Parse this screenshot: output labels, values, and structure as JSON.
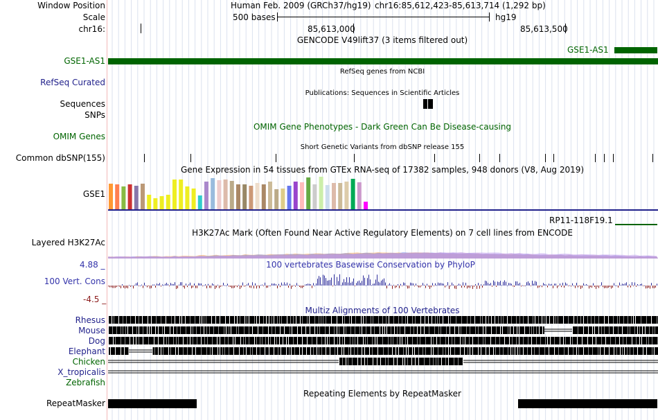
{
  "header": {
    "window_position_label": "Window Position",
    "scale_label": "Scale",
    "chrom_label": "chr16:",
    "assembly": "Human Feb. 2009 (GRCh37/hg19)",
    "position": "chr16:85,612,423-85,613,714 (1,292 bp)",
    "scale_text": "500 bases",
    "db": "hg19",
    "coord_ticks": [
      "85,613,000",
      "85,613,500"
    ]
  },
  "tracks": {
    "gencode": {
      "title": "GENCODE V49lift37 (3 items filtered out)",
      "label": "GSE1-AS1",
      "right_item": "GSE1-AS1",
      "color": "#006400"
    },
    "refseq": {
      "title": "RefSeq genes from NCBI",
      "label": "RefSeq Curated",
      "color": "#1f1f8a"
    },
    "publications": {
      "title": "Publications: Sequences in Scientific Articles",
      "label1": "Sequences",
      "label2": "SNPs"
    },
    "omim": {
      "title": "OMIM Gene Phenotypes - Dark Green Can Be Disease-causing",
      "label": "OMIM Genes",
      "color": "#006400"
    },
    "dbsnp": {
      "title": "Short Genetic Variants from dbSNP release 155",
      "label": "Common dbSNP(155)"
    },
    "gtex": {
      "title": "Gene Expression in 54 tissues from GTEx RNA-seq of 17382 samples, 948 donors (V8, Aug 2019)",
      "label": "GSE1",
      "right_item": "RP11-118F19.1"
    },
    "h3k27ac": {
      "title": "H3K27Ac Mark (Often Found Near Active Regulatory Elements) on 7 cell lines from ENCODE",
      "label": "Layered H3K27Ac"
    },
    "phylop": {
      "title": "100 vertebrates Basewise Conservation by PhyloP",
      "label": "100 Vert. Cons",
      "max": "4.88 _",
      "min": "-4.5 _",
      "color": "#3333aa"
    },
    "multiz": {
      "title": "Multiz Alignments of 100 Vertebrates",
      "color": "#1f1f8a",
      "species": [
        {
          "name": "Rhesus",
          "color": "#1f1f8a"
        },
        {
          "name": "Mouse",
          "color": "#1f1f8a"
        },
        {
          "name": "Dog",
          "color": "#1f1f8a"
        },
        {
          "name": "Elephant",
          "color": "#1f1f8a"
        },
        {
          "name": "Chicken",
          "color": "#006400"
        },
        {
          "name": "X_tropicalis",
          "color": "#1f1f8a"
        },
        {
          "name": "Zebrafish",
          "color": "#006400"
        }
      ]
    },
    "repeatmasker": {
      "title": "Repeating Elements by RepeatMasker",
      "label": "RepeatMasker"
    }
  },
  "gtex_colors": [
    "#ff9933",
    "#ff7f50",
    "#88bb44",
    "#cc3333",
    "#8877aa",
    "#bb9977",
    "#eeee22",
    "#eeee22",
    "#eeee22",
    "#eeee22",
    "#eeee22",
    "#eeee22",
    "#eeee22",
    "#eeee22",
    "#33cccc",
    "#aa88cc",
    "#99bbdd",
    "#eecccc",
    "#ddbbaa",
    "#bbaa88",
    "#aa8866",
    "#998866",
    "#cc9977",
    "#eeddcc",
    "#aa8866",
    "#ccbb99",
    "#bbaa88",
    "#ddcc88",
    "#6677ee",
    "#9944cc",
    "#ffbbbb",
    "#66aa44",
    "#cccccc",
    "#cceeaa",
    "#ccddee",
    "#ddbbaa",
    "#ccbb99",
    "#ddccaa",
    "#00aa55",
    "#cc99cc",
    "#ff00ff"
  ]
}
